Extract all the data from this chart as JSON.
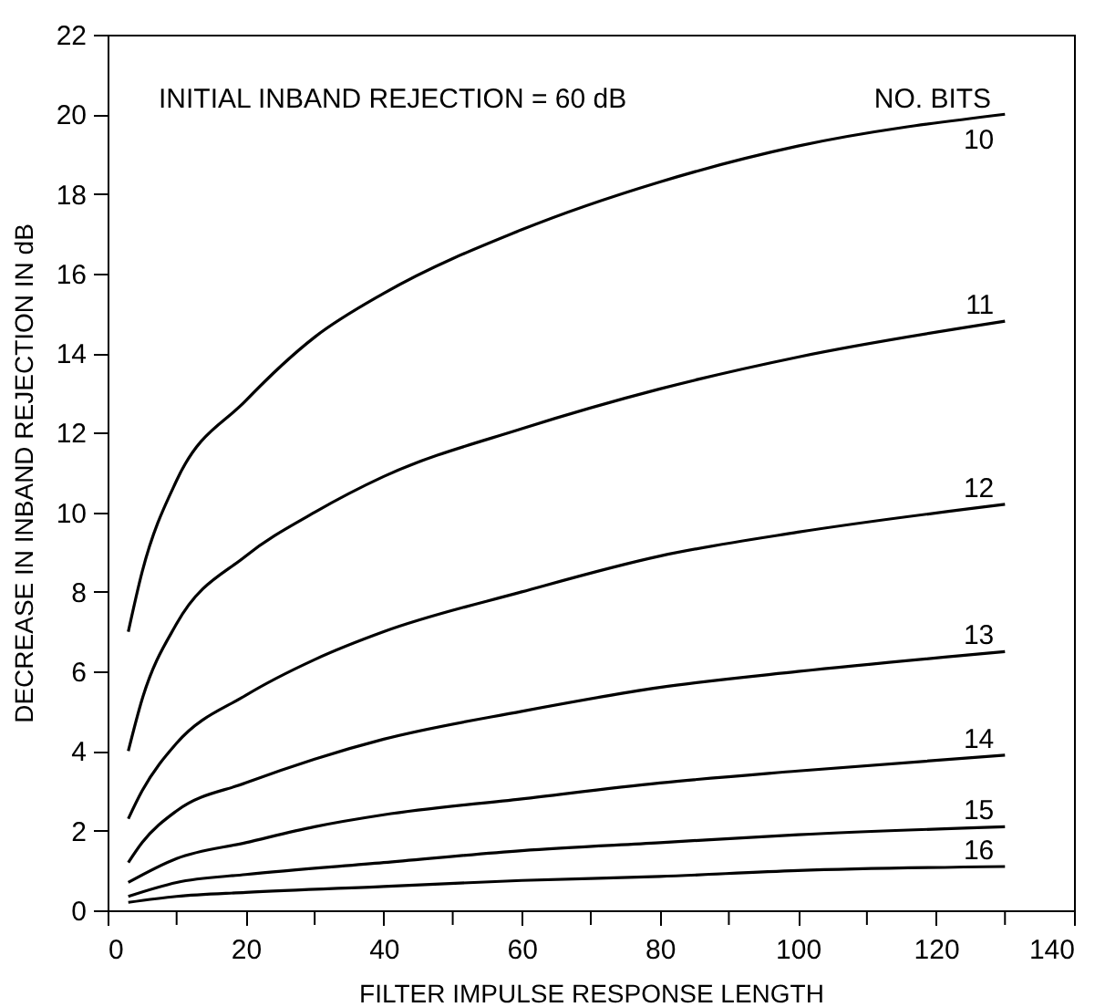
{
  "chart_data": {
    "type": "line",
    "xlabel": "FILTER IMPULSE RESPONSE LENGTH",
    "ylabel": "DECREASE IN INBAND REJECTION IN dB",
    "legend_title": "NO. BITS",
    "annotations": [
      "INITIAL INBAND REJECTION = 60 dB"
    ],
    "xlim": [
      0,
      140
    ],
    "ylim": [
      0,
      22
    ],
    "xticks": [
      0,
      {
        "value": 10,
        "label": null
      },
      20,
      {
        "value": 30,
        "label": null
      },
      40,
      {
        "value": 50,
        "label": null
      },
      60,
      {
        "value": 70,
        "label": null
      },
      80,
      {
        "value": 90,
        "label": null
      },
      100,
      {
        "value": 110,
        "label": null
      },
      120,
      {
        "value": 130,
        "label": null
      },
      140
    ],
    "yticks": [
      0,
      2,
      4,
      6,
      8,
      10,
      12,
      14,
      16,
      18,
      20,
      22
    ],
    "grid": false,
    "series": [
      {
        "name": "10",
        "color": "#000000",
        "x": [
          3,
          5,
          10,
          20,
          30,
          40,
          60,
          80,
          100,
          130
        ],
        "values": [
          7.0,
          8.5,
          10.8,
          12.8,
          14.4,
          15.5,
          17.1,
          18.3,
          19.2,
          20.0
        ]
      },
      {
        "name": "11",
        "color": "#000000",
        "x": [
          3,
          5,
          10,
          20,
          30,
          40,
          60,
          80,
          100,
          130
        ],
        "values": [
          4.0,
          5.3,
          7.2,
          8.9,
          10.0,
          10.9,
          12.1,
          13.1,
          13.9,
          14.8
        ]
      },
      {
        "name": "12",
        "color": "#000000",
        "x": [
          3,
          5,
          10,
          20,
          30,
          40,
          60,
          80,
          100,
          130
        ],
        "values": [
          2.3,
          3.0,
          4.2,
          5.4,
          6.3,
          7.0,
          8.0,
          8.9,
          9.5,
          10.2
        ]
      },
      {
        "name": "13",
        "color": "#000000",
        "x": [
          3,
          5,
          10,
          20,
          30,
          40,
          60,
          80,
          100,
          130
        ],
        "values": [
          1.2,
          1.7,
          2.5,
          3.2,
          3.8,
          4.3,
          5.0,
          5.6,
          6.0,
          6.5
        ]
      },
      {
        "name": "14",
        "color": "#000000",
        "x": [
          3,
          10,
          20,
          30,
          40,
          60,
          80,
          100,
          130
        ],
        "values": [
          0.7,
          1.3,
          1.7,
          2.1,
          2.4,
          2.8,
          3.2,
          3.5,
          3.9
        ]
      },
      {
        "name": "15",
        "color": "#000000",
        "x": [
          3,
          10,
          20,
          40,
          60,
          80,
          100,
          130
        ],
        "values": [
          0.35,
          0.7,
          0.9,
          1.2,
          1.5,
          1.7,
          1.9,
          2.1
        ]
      },
      {
        "name": "16",
        "color": "#000000",
        "x": [
          3,
          10,
          20,
          40,
          60,
          80,
          100,
          130
        ],
        "values": [
          0.2,
          0.35,
          0.45,
          0.6,
          0.75,
          0.85,
          1.0,
          1.1
        ]
      }
    ]
  }
}
